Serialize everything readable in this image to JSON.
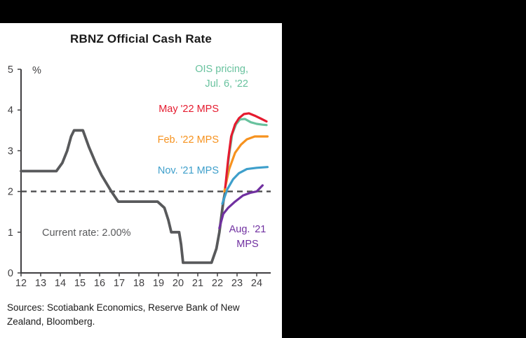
{
  "frame": {
    "background_color": "#000000"
  },
  "card": {
    "title": "RBNZ Official Cash Rate",
    "unit_label": "%",
    "sources_text": "Sources: Scotiabank Economics, Reserve Bank of New Zealand, Bloomberg.",
    "annotations": {
      "ois": {
        "line1": "OIS pricing,",
        "line2": "Jul. 6, '22",
        "color": "#68C29E"
      },
      "may": {
        "text": "May '22 MPS",
        "color": "#E51B2F"
      },
      "feb": {
        "text": "Feb. '22 MPS",
        "color": "#F6921E"
      },
      "nov": {
        "text": "Nov. '21 MPS",
        "color": "#3E9FCB"
      },
      "aug": {
        "line1": "Aug. '21",
        "line2": "MPS",
        "color": "#7030A0"
      },
      "current_rate": {
        "text": "Current rate: 2.00%",
        "color": "#58595B"
      }
    }
  },
  "chart_data": {
    "type": "line",
    "title": "RBNZ Official Cash Rate",
    "xlabel": "",
    "ylabel": "%",
    "ylim": [
      0,
      5
    ],
    "xlim": [
      12,
      24.7
    ],
    "x_ticks": [
      12,
      13,
      14,
      15,
      16,
      17,
      18,
      19,
      20,
      21,
      22,
      23,
      24
    ],
    "y_ticks": [
      0,
      1,
      2,
      3,
      4,
      5
    ],
    "grid": false,
    "legend_position": "inline-annotations",
    "axis_color": "#414042",
    "reference_line": {
      "value": 2.0,
      "style": "dashed",
      "color": "#4D4D4F",
      "label": "Current rate: 2.00%"
    },
    "series": [
      {
        "name": "Official Cash Rate (historical)",
        "color": "#58595B",
        "width": 3.8,
        "points": [
          [
            12,
            2.5
          ],
          [
            13.8,
            2.5
          ],
          [
            14.1,
            2.7
          ],
          [
            14.35,
            3.0
          ],
          [
            14.55,
            3.35
          ],
          [
            14.7,
            3.5
          ],
          [
            15.15,
            3.5
          ],
          [
            15.45,
            3.1
          ],
          [
            15.8,
            2.7
          ],
          [
            16.1,
            2.4
          ],
          [
            16.6,
            2.0
          ],
          [
            16.95,
            1.75
          ],
          [
            18.95,
            1.75
          ],
          [
            19.3,
            1.6
          ],
          [
            19.5,
            1.3
          ],
          [
            19.65,
            1.0
          ],
          [
            20.05,
            1.0
          ],
          [
            20.15,
            0.7
          ],
          [
            20.25,
            0.25
          ],
          [
            21.7,
            0.25
          ],
          [
            21.95,
            0.6
          ],
          [
            22.1,
            1.0
          ],
          [
            22.3,
            1.75
          ],
          [
            22.4,
            2.0
          ]
        ]
      },
      {
        "name": "Aug. '21 MPS",
        "color": "#7030A0",
        "width": 3.2,
        "points": [
          [
            22.1,
            1.1
          ],
          [
            22.3,
            1.45
          ],
          [
            22.55,
            1.6
          ],
          [
            22.9,
            1.75
          ],
          [
            23.3,
            1.9
          ],
          [
            23.7,
            1.97
          ],
          [
            24.0,
            2.0
          ],
          [
            24.3,
            2.15
          ]
        ]
      },
      {
        "name": "Nov. '21 MPS",
        "color": "#3E9FCB",
        "width": 3.2,
        "points": [
          [
            22.25,
            1.7
          ],
          [
            22.5,
            2.05
          ],
          [
            22.8,
            2.3
          ],
          [
            23.1,
            2.45
          ],
          [
            23.5,
            2.55
          ],
          [
            24.0,
            2.58
          ],
          [
            24.55,
            2.6
          ]
        ]
      },
      {
        "name": "Feb. '22 MPS",
        "color": "#F6921E",
        "width": 3.2,
        "points": [
          [
            22.35,
            2.0
          ],
          [
            22.6,
            2.55
          ],
          [
            22.9,
            2.95
          ],
          [
            23.2,
            3.15
          ],
          [
            23.5,
            3.28
          ],
          [
            23.9,
            3.35
          ],
          [
            24.55,
            3.35
          ]
        ]
      },
      {
        "name": "OIS pricing, Jul. 6, '22",
        "color": "#68C29E",
        "width": 3.2,
        "points": [
          [
            22.45,
            2.3
          ],
          [
            22.6,
            2.9
          ],
          [
            22.75,
            3.4
          ],
          [
            22.95,
            3.65
          ],
          [
            23.15,
            3.77
          ],
          [
            23.4,
            3.78
          ],
          [
            23.7,
            3.7
          ],
          [
            24.0,
            3.66
          ],
          [
            24.3,
            3.64
          ],
          [
            24.5,
            3.63
          ]
        ]
      },
      {
        "name": "May '22 MPS",
        "color": "#E51B2F",
        "width": 3.2,
        "points": [
          [
            22.4,
            2.1
          ],
          [
            22.55,
            2.8
          ],
          [
            22.7,
            3.35
          ],
          [
            22.9,
            3.65
          ],
          [
            23.1,
            3.8
          ],
          [
            23.35,
            3.9
          ],
          [
            23.6,
            3.92
          ],
          [
            23.95,
            3.85
          ],
          [
            24.25,
            3.78
          ],
          [
            24.5,
            3.72
          ]
        ]
      }
    ]
  }
}
